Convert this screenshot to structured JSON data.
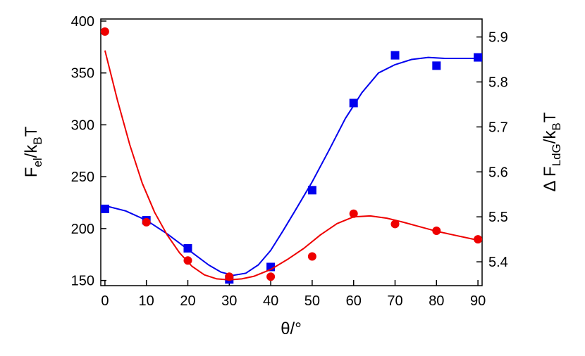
{
  "chart_data": {
    "type": "scatter",
    "xlabel": "θ/°",
    "ylabel_left": {
      "main": "F",
      "sub": "el",
      "rest": "/k",
      "sub2": "B",
      "tail": "T"
    },
    "ylabel_right": {
      "main": "Δ F",
      "sub": "LdG",
      "rest": "/k",
      "sub2": "B",
      "tail": "T"
    },
    "xlim": [
      -1,
      91
    ],
    "ylim_left": [
      145,
      402
    ],
    "ylim_right": [
      5.347,
      5.94
    ],
    "x_ticks": [
      0,
      10,
      20,
      30,
      40,
      50,
      60,
      70,
      80,
      90
    ],
    "y_left_ticks": [
      150,
      200,
      250,
      300,
      350,
      400
    ],
    "y_right_ticks": [
      5.4,
      5.5,
      5.6,
      5.7,
      5.8,
      5.9
    ],
    "grid": false,
    "series": [
      {
        "axis": "left",
        "marker": "square",
        "color": "#0000ee",
        "x": [
          0,
          10,
          20,
          30,
          40,
          50,
          60,
          70,
          80,
          90
        ],
        "y": [
          219,
          208,
          181,
          151,
          163,
          237,
          321,
          367,
          357,
          365
        ],
        "fit_x": [
          0,
          5,
          10,
          15,
          20,
          25,
          28,
          31,
          34,
          37,
          40,
          43,
          46,
          50,
          54,
          58,
          62,
          66,
          70,
          74,
          78,
          82,
          86,
          90
        ],
        "fit_y": [
          222,
          217,
          208,
          195,
          180,
          165,
          158,
          155,
          157,
          165,
          179,
          198,
          218,
          245,
          275,
          306,
          331,
          350,
          358,
          363,
          365,
          364,
          364,
          364
        ]
      },
      {
        "axis": "right",
        "marker": "circle",
        "color": "#ee0000",
        "x": [
          0,
          10,
          20,
          30,
          40,
          50,
          60,
          70,
          80,
          90
        ],
        "y": [
          5.912,
          5.488,
          5.403,
          5.367,
          5.367,
          5.412,
          5.507,
          5.484,
          5.469,
          5.45
        ],
        "fit_x": [
          0,
          3,
          6,
          9,
          12,
          15,
          18,
          21,
          24,
          27,
          30,
          33,
          36,
          40,
          44,
          48,
          52,
          56,
          60,
          64,
          68,
          72,
          76,
          80,
          84,
          88,
          90
        ],
        "fit_y": [
          5.87,
          5.76,
          5.66,
          5.575,
          5.51,
          5.46,
          5.42,
          5.39,
          5.371,
          5.362,
          5.36,
          5.362,
          5.368,
          5.383,
          5.405,
          5.43,
          5.46,
          5.485,
          5.5,
          5.502,
          5.497,
          5.488,
          5.478,
          5.468,
          5.46,
          5.452,
          5.448
        ]
      }
    ]
  }
}
